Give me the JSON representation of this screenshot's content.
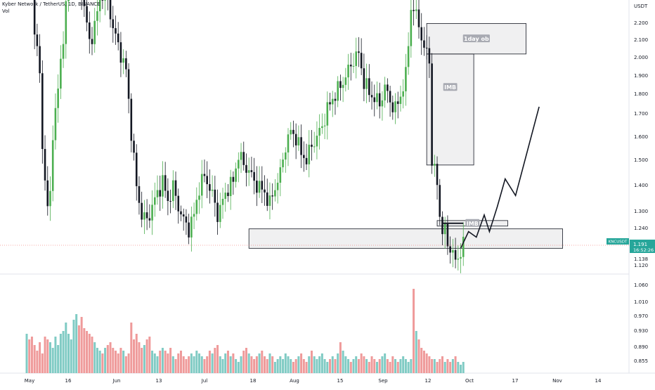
{
  "header": {
    "symbol_line": "Kyber Network / TetherUS, 1D, BINANCE",
    "indicator": "Vol"
  },
  "price_scale": {
    "currency": "USDT",
    "ticks": [
      "2.200",
      "2.100",
      "2.000",
      "1.900",
      "1.800",
      "1.700",
      "1.600",
      "1.500",
      "1.400",
      "1.300",
      "1.240",
      "1.138",
      "1.120",
      "1.060",
      "1.010",
      "0.970",
      "0.930",
      "0.890",
      "0.855"
    ]
  },
  "last_price_tag": {
    "ticker": "KNCUSDT",
    "price": "1.191",
    "countdown": "16:52:26",
    "color": "#26a69a"
  },
  "time_axis": {
    "labels": [
      "May",
      "16",
      "Jun",
      "13",
      "Jul",
      "18",
      "Aug",
      "15",
      "Sep",
      "12",
      "Oct",
      "17",
      "Nov",
      "14"
    ]
  },
  "annotations": {
    "ob_label": "1day ob",
    "imb_label": "IMB",
    "small_box_label": "IMB"
  },
  "chart_data": {
    "type": "candlestick",
    "title": "Kyber Network / TetherUS, 1D, BINANCE",
    "ylabel": "USDT",
    "ylim": [
      0.82,
      2.28
    ],
    "colors": {
      "up": "#4caf50",
      "down": "#131722",
      "vol_up": "#80cbc4",
      "vol_down": "#ef9a9a"
    },
    "anchors": [
      [
        0,
        2.3
      ],
      [
        2,
        2.25
      ],
      [
        3,
        1.98
      ],
      [
        5,
        1.8
      ],
      [
        6,
        1.55
      ],
      [
        8,
        1.32
      ],
      [
        9,
        1.37
      ],
      [
        10,
        1.6
      ],
      [
        12,
        1.75
      ],
      [
        14,
        1.95
      ],
      [
        16,
        2.15
      ],
      [
        18,
        2.22
      ],
      [
        20,
        2.18
      ],
      [
        22,
        2.05
      ],
      [
        24,
        1.92
      ],
      [
        26,
        1.98
      ],
      [
        28,
        2.08
      ],
      [
        30,
        2.12
      ],
      [
        32,
        2.02
      ],
      [
        34,
        1.94
      ],
      [
        36,
        1.88
      ],
      [
        38,
        1.82
      ],
      [
        40,
        1.6
      ],
      [
        42,
        1.4
      ],
      [
        44,
        1.3
      ],
      [
        46,
        1.28
      ],
      [
        48,
        1.33
      ],
      [
        50,
        1.38
      ],
      [
        52,
        1.42
      ],
      [
        54,
        1.35
      ],
      [
        56,
        1.4
      ],
      [
        58,
        1.33
      ],
      [
        60,
        1.28
      ],
      [
        62,
        1.25
      ],
      [
        64,
        1.3
      ],
      [
        66,
        1.4
      ],
      [
        68,
        1.44
      ],
      [
        70,
        1.4
      ],
      [
        72,
        1.34
      ],
      [
        73,
        1.3
      ],
      [
        75,
        1.35
      ],
      [
        77,
        1.4
      ],
      [
        79,
        1.42
      ],
      [
        81,
        1.52
      ],
      [
        83,
        1.48
      ],
      [
        85,
        1.46
      ],
      [
        87,
        1.42
      ],
      [
        89,
        1.4
      ],
      [
        91,
        1.38
      ],
      [
        93,
        1.34
      ],
      [
        95,
        1.4
      ],
      [
        97,
        1.45
      ],
      [
        99,
        1.55
      ],
      [
        101,
        1.6
      ],
      [
        103,
        1.58
      ],
      [
        105,
        1.52
      ],
      [
        107,
        1.5
      ],
      [
        109,
        1.55
      ],
      [
        111,
        1.58
      ],
      [
        113,
        1.62
      ],
      [
        115,
        1.68
      ],
      [
        117,
        1.72
      ],
      [
        119,
        1.75
      ],
      [
        121,
        1.78
      ],
      [
        123,
        1.82
      ],
      [
        125,
        1.86
      ],
      [
        127,
        1.88
      ],
      [
        129,
        1.78
      ],
      [
        131,
        1.74
      ],
      [
        133,
        1.72
      ],
      [
        135,
        1.7
      ],
      [
        137,
        1.76
      ],
      [
        139,
        1.71
      ],
      [
        141,
        1.68
      ],
      [
        143,
        1.73
      ],
      [
        145,
        1.8
      ],
      [
        146,
        1.92
      ],
      [
        147,
        2.05
      ],
      [
        149,
        2.02
      ],
      [
        151,
        1.95
      ],
      [
        152,
        1.88
      ],
      [
        153,
        1.9
      ],
      [
        154,
        1.85
      ],
      [
        155,
        1.5
      ],
      [
        156,
        1.45
      ],
      [
        157,
        1.42
      ],
      [
        158,
        1.3
      ],
      [
        159,
        1.24
      ],
      [
        160,
        1.24
      ],
      [
        161,
        1.2
      ],
      [
        162,
        1.18
      ],
      [
        163,
        1.16
      ],
      [
        164,
        1.13
      ],
      [
        165,
        1.15
      ],
      [
        166,
        1.17
      ],
      [
        167,
        1.19
      ]
    ],
    "candle_count": 168,
    "volume": [
      14,
      12,
      13,
      10,
      8,
      11,
      7,
      13,
      12,
      11,
      9,
      13,
      10,
      14,
      15,
      18,
      14,
      12,
      19,
      21,
      17,
      20,
      16,
      15,
      14,
      13,
      11,
      9,
      8,
      7,
      9,
      10,
      11,
      9,
      8,
      7,
      9,
      8,
      6,
      7,
      18,
      12,
      14,
      11,
      9,
      10,
      12,
      13,
      8,
      7,
      6,
      8,
      9,
      8,
      7,
      9,
      6,
      5,
      7,
      8,
      6,
      5,
      6,
      7,
      6,
      8,
      7,
      6,
      5,
      6,
      8,
      7,
      9,
      10,
      6,
      5,
      7,
      8,
      6,
      7,
      5,
      4,
      6,
      8,
      9,
      7,
      6,
      5,
      6,
      7,
      8,
      6,
      5,
      7,
      6,
      4,
      5,
      6,
      5,
      7,
      6,
      5,
      4,
      5,
      6,
      7,
      5,
      4,
      6,
      8,
      6,
      5,
      6,
      7,
      5,
      4,
      5,
      6,
      5,
      7,
      11,
      8,
      6,
      5,
      4,
      5,
      6,
      5,
      7,
      6,
      5,
      4,
      6,
      5,
      4,
      5,
      6,
      7,
      5,
      4,
      6,
      5,
      4,
      5,
      6,
      5,
      4,
      5,
      30,
      15,
      12,
      9,
      8,
      7,
      6,
      5,
      5,
      4,
      5,
      6,
      4,
      5,
      4,
      5,
      6,
      4,
      3,
      4
    ],
    "zones": [
      {
        "label": "1day ob",
        "x0": 153,
        "x1": 191,
        "y0": 1.88,
        "y1": 1.99
      },
      {
        "label": "IMB",
        "x0": 153,
        "x1": 171,
        "y0": 1.48,
        "y1": 1.88
      },
      {
        "label": "IMB",
        "x0": 157,
        "x1": 184,
        "y0": 1.26,
        "y1": 1.28
      },
      {
        "label": "",
        "x0": 85,
        "x1": 205,
        "y0": 1.18,
        "y1": 1.25
      }
    ],
    "projection": [
      [
        166,
        1.18
      ],
      [
        169,
        1.24
      ],
      [
        172,
        1.22
      ],
      [
        175,
        1.3
      ],
      [
        177,
        1.24
      ],
      [
        180,
        1.33
      ],
      [
        183,
        1.43
      ],
      [
        187,
        1.37
      ],
      [
        196,
        1.69
      ]
    ]
  }
}
